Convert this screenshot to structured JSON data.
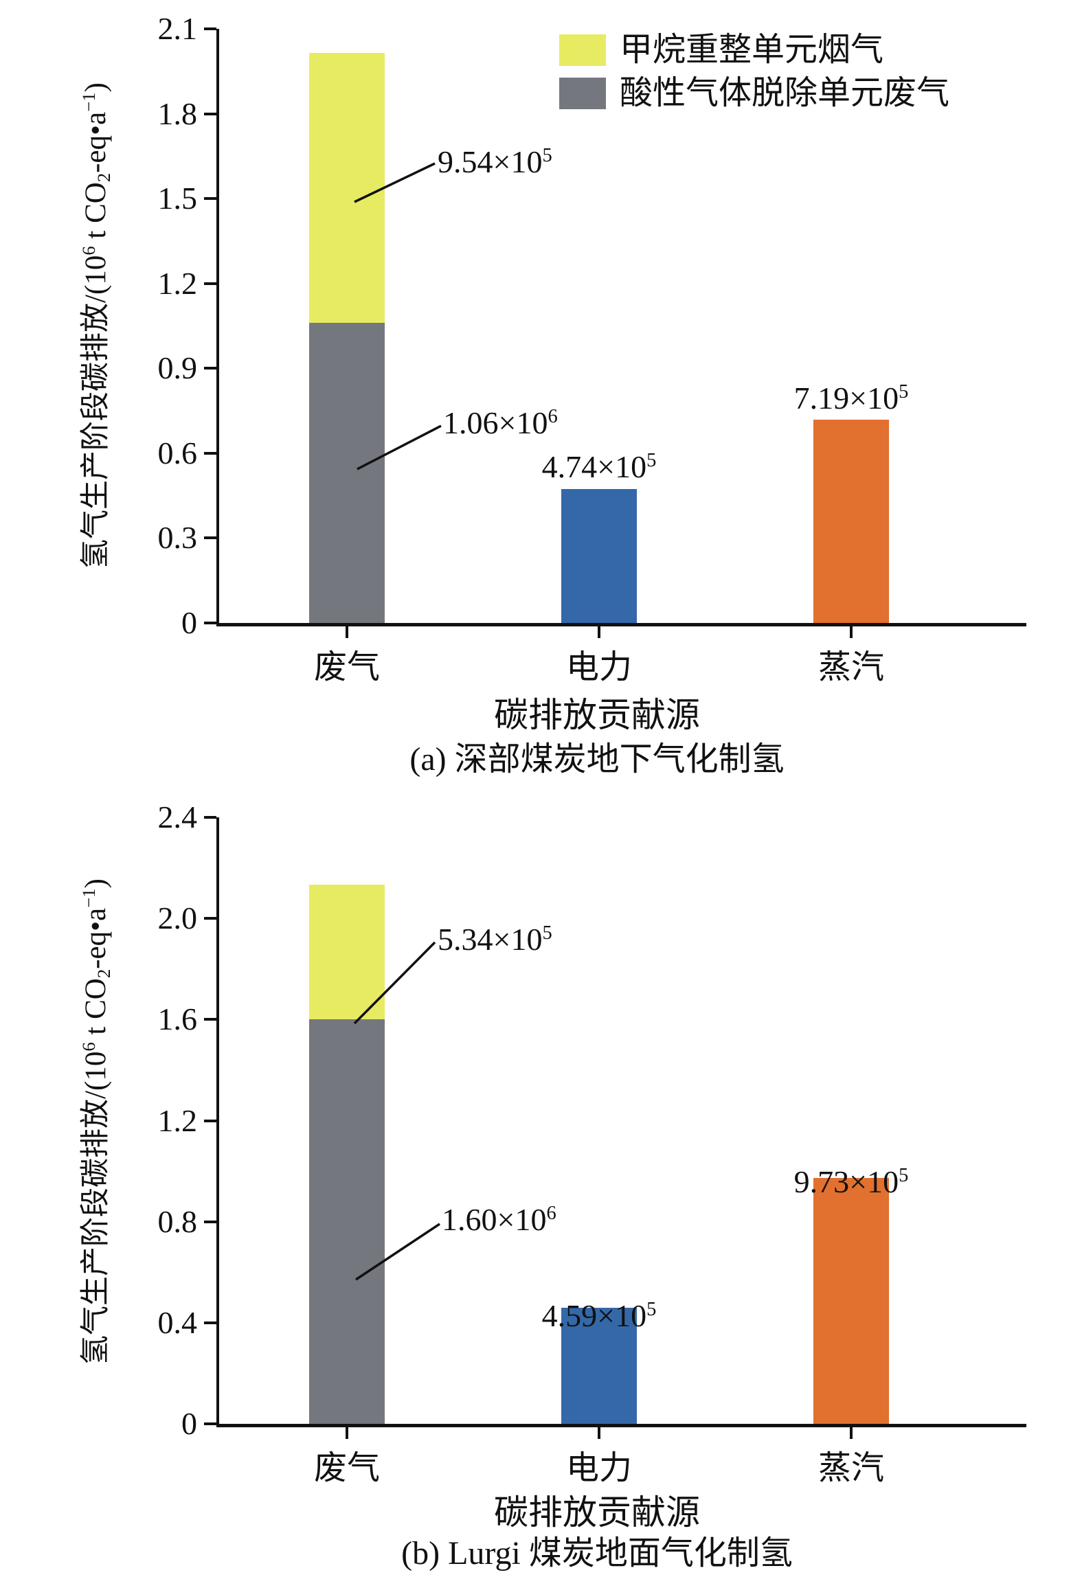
{
  "figure": {
    "y_label_parts": {
      "pre": "氢气生产阶段碳排放/(10",
      "sup1": "6",
      "mid1": " t CO",
      "sub1": "2",
      "mid2": "-eq•a",
      "sup2": "−1",
      "post": ")"
    },
    "legend": [
      {
        "label": "甲烷重整单元烟气",
        "color_key": "yellow"
      },
      {
        "label": "酸性气体脱除单元废气",
        "color_key": "gray"
      }
    ],
    "colors": {
      "yellow": "#E7EB62",
      "gray": "#75777E",
      "blue": "#3568A8",
      "orange": "#E2702F",
      "axis": "#111111"
    }
  },
  "chart_data": [
    {
      "type": "bar",
      "stacked": true,
      "title": "(a) 深部煤炭地下气化制氢",
      "xlabel": "碳排放贡献源",
      "ylabel": "氢气生产阶段碳排放/(10⁶ t CO₂-eq•a⁻¹)",
      "unit": "10⁶ t CO₂-eq•a⁻¹",
      "ylim": [
        0,
        2.1
      ],
      "yticks": [
        {
          "value": 0,
          "label": "0"
        },
        {
          "value": 0.3,
          "label": "0.3"
        },
        {
          "value": 0.6,
          "label": "0.6"
        },
        {
          "value": 0.9,
          "label": "0.9"
        },
        {
          "value": 1.2,
          "label": "1.2"
        },
        {
          "value": 1.5,
          "label": "1.5"
        },
        {
          "value": 1.8,
          "label": "1.8"
        },
        {
          "value": 2.1,
          "label": "2.1"
        }
      ],
      "bars": [
        {
          "category": "废气",
          "segments": [
            {
              "name": "酸性气体脱除单元废气",
              "color_key": "gray",
              "value": 1.06
            },
            {
              "name": "甲烷重整单元烟气",
              "color_key": "yellow",
              "value": 0.954
            }
          ]
        },
        {
          "category": "电力",
          "segments": [
            {
              "name": "电力",
              "color_key": "blue",
              "value": 0.474
            }
          ]
        },
        {
          "category": "蒸汽",
          "segments": [
            {
              "name": "蒸汽",
              "color_key": "orange",
              "value": 0.719
            }
          ]
        }
      ],
      "annotations": [
        {
          "target": "甲烷重整单元烟气",
          "base": "9.54×10",
          "exp": "5"
        },
        {
          "target": "酸性气体脱除单元废气",
          "base": "1.06×10",
          "exp": "6"
        },
        {
          "target": "电力",
          "base": "4.74×10",
          "exp": "5"
        },
        {
          "target": "蒸汽",
          "base": "7.19×10",
          "exp": "5"
        }
      ]
    },
    {
      "type": "bar",
      "stacked": true,
      "title": "(b) Lurgi 煤炭地面气化制氢",
      "xlabel": "碳排放贡献源",
      "ylabel": "氢气生产阶段碳排放/(10⁶ t CO₂-eq•a⁻¹)",
      "unit": "10⁶ t CO₂-eq•a⁻¹",
      "ylim": [
        0,
        2.4
      ],
      "yticks": [
        {
          "value": 0,
          "label": "0"
        },
        {
          "value": 0.4,
          "label": "0.4"
        },
        {
          "value": 0.8,
          "label": "0.8"
        },
        {
          "value": 1.2,
          "label": "1.2"
        },
        {
          "value": 1.6,
          "label": "1.6"
        },
        {
          "value": 2.0,
          "label": "2.0"
        },
        {
          "value": 2.4,
          "label": "2.4"
        }
      ],
      "bars": [
        {
          "category": "废气",
          "segments": [
            {
              "name": "酸性气体脱除单元废气",
              "color_key": "gray",
              "value": 1.6
            },
            {
              "name": "甲烷重整单元烟气",
              "color_key": "yellow",
              "value": 0.534
            }
          ]
        },
        {
          "category": "电力",
          "segments": [
            {
              "name": "电力",
              "color_key": "blue",
              "value": 0.459
            }
          ]
        },
        {
          "category": "蒸汽",
          "segments": [
            {
              "name": "蒸汽",
              "color_key": "orange",
              "value": 0.973
            }
          ]
        }
      ],
      "annotations": [
        {
          "target": "甲烷重整单元烟气",
          "base": "5.34×10",
          "exp": "5"
        },
        {
          "target": "酸性气体脱除单元废气",
          "base": "1.60×10",
          "exp": "6"
        },
        {
          "target": "电力",
          "base": "4.59×10",
          "exp": "5"
        },
        {
          "target": "蒸汽",
          "base": "9.73×10",
          "exp": "5"
        }
      ]
    }
  ]
}
